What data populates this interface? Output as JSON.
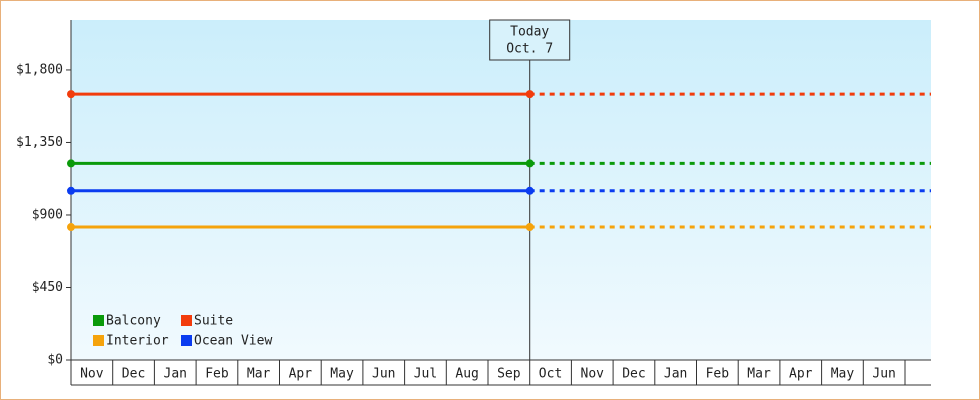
{
  "chart_data": {
    "type": "line",
    "categories": [
      "Nov",
      "Dec",
      "Jan",
      "Feb",
      "Mar",
      "Apr",
      "May",
      "Jun",
      "Jul",
      "Aug",
      "Sep",
      "Oct",
      "Nov",
      "Dec",
      "Jan",
      "Feb",
      "Mar",
      "Apr",
      "May",
      "Jun"
    ],
    "series": [
      {
        "name": "Balcony",
        "color": "#0a9a0a",
        "value": 1220
      },
      {
        "name": "Suite",
        "color": "#f23c0c",
        "value": 1650
      },
      {
        "name": "Interior",
        "color": "#f5a30c",
        "value": 825
      },
      {
        "name": "Ocean View",
        "color": "#0a3cf0",
        "value": 1050
      }
    ],
    "annotation": [
      "Today",
      "Oct. 7"
    ],
    "ylim": [
      0,
      2110
    ],
    "yticks": [
      {
        "value": 0,
        "label": "$0"
      },
      {
        "value": 450,
        "label": "$450"
      },
      {
        "value": 900,
        "label": "$900"
      },
      {
        "value": 1350,
        "label": "$1,350"
      },
      {
        "value": 1800,
        "label": "$1,800"
      }
    ]
  }
}
